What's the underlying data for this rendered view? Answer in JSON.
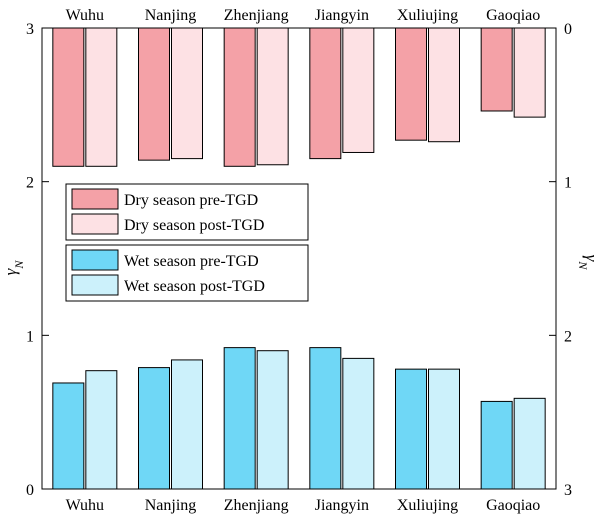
{
  "chart_data": {
    "type": "bar",
    "categories": [
      "Wuhu",
      "Nanjing",
      "Zhenjiang",
      "Jiangyin",
      "Xuliujing",
      "Gaoqiao"
    ],
    "left_axis": {
      "label": "γN",
      "label_main": "γ",
      "label_sub": "N",
      "ylim": [
        0,
        3
      ],
      "ticks": [
        "0",
        "1",
        "2",
        "3"
      ]
    },
    "right_axis": {
      "label": "γN",
      "label_main": "γ",
      "label_sub": "N",
      "ylim": [
        0,
        3
      ],
      "inverted": true,
      "ticks": [
        "0",
        "1",
        "2",
        "3"
      ]
    },
    "series": [
      {
        "name": "Dry season pre-TGD",
        "axis": "right",
        "color": "#f4a1a7",
        "values": [
          0.9,
          0.86,
          0.9,
          0.85,
          0.73,
          0.54
        ]
      },
      {
        "name": "Dry season post-TGD",
        "axis": "right",
        "color": "#fde1e4",
        "values": [
          0.9,
          0.85,
          0.89,
          0.81,
          0.74,
          0.58
        ]
      },
      {
        "name": "Wet season pre-TGD",
        "axis": "left",
        "color": "#6fd7f6",
        "values": [
          0.69,
          0.79,
          0.92,
          0.92,
          0.78,
          0.57
        ]
      },
      {
        "name": "Wet season post-TGD",
        "axis": "left",
        "color": "#ccf1fb",
        "values": [
          0.77,
          0.84,
          0.9,
          0.85,
          0.78,
          0.59
        ]
      }
    ],
    "grid": false,
    "legend_groups": [
      {
        "position": "middle-left-upper",
        "series": [
          0,
          1
        ]
      },
      {
        "position": "middle-left-lower",
        "series": [
          2,
          3
        ]
      }
    ]
  }
}
